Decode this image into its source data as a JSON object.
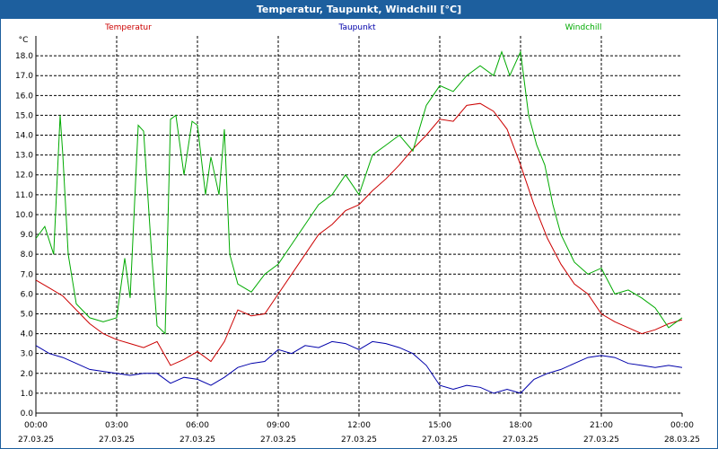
{
  "window": {
    "title": "Temperatur, Taupunkt, Windchill [°C]"
  },
  "colors": {
    "titlebar": "#1d5f9e",
    "grid": "#000000",
    "axis": "#000000"
  },
  "chart_data": {
    "type": "line",
    "title": "Temperatur, Taupunkt, Windchill [°C]",
    "ylabel": "°C",
    "xlabel": "",
    "ylim": [
      0.0,
      19.0
    ],
    "xlim": [
      0.0,
      24.0
    ],
    "grid": true,
    "legend_placement": "top",
    "y_ticks": [
      0.0,
      1.0,
      2.0,
      3.0,
      4.0,
      5.0,
      6.0,
      7.0,
      8.0,
      9.0,
      10.0,
      11.0,
      12.0,
      13.0,
      14.0,
      15.0,
      16.0,
      17.0,
      18.0
    ],
    "y_tick_labels": [
      "0.0",
      "1.0",
      "2.0",
      "3.0",
      "4.0",
      "5.0",
      "6.0",
      "7.0",
      "8.0",
      "9.0",
      "10.0",
      "11.0",
      "12.0",
      "13.0",
      "14.0",
      "15.0",
      "16.0",
      "17.0",
      "18.0"
    ],
    "x_ticks": [
      {
        "hour": 0,
        "time": "00:00",
        "date": "27.03.25"
      },
      {
        "hour": 3,
        "time": "03:00",
        "date": "27.03.25"
      },
      {
        "hour": 6,
        "time": "06:00",
        "date": "27.03.25"
      },
      {
        "hour": 9,
        "time": "09:00",
        "date": "27.03.25"
      },
      {
        "hour": 12,
        "time": "12:00",
        "date": "27.03.25"
      },
      {
        "hour": 15,
        "time": "15:00",
        "date": "27.03.25"
      },
      {
        "hour": 18,
        "time": "18:00",
        "date": "27.03.25"
      },
      {
        "hour": 21,
        "time": "21:00",
        "date": "27.03.25"
      },
      {
        "hour": 24,
        "time": "00:00",
        "date": "28.03.25"
      }
    ],
    "series": [
      {
        "name": "Temperatur",
        "color": "#cc0000",
        "x": [
          0,
          0.5,
          1,
          1.5,
          2,
          2.5,
          3,
          3.5,
          4,
          4.5,
          5,
          5.5,
          6,
          6.5,
          7,
          7.5,
          8,
          8.5,
          9,
          9.5,
          10,
          10.5,
          11,
          11.5,
          12,
          12.5,
          13,
          13.5,
          14,
          14.5,
          15,
          15.5,
          16,
          16.5,
          17,
          17.5,
          18,
          18.5,
          19,
          19.5,
          20,
          20.5,
          21,
          21.5,
          22,
          22.5,
          23,
          23.5,
          24
        ],
        "values": [
          6.7,
          6.3,
          5.9,
          5.2,
          4.5,
          4.0,
          3.7,
          3.5,
          3.3,
          3.6,
          2.4,
          2.7,
          3.1,
          2.6,
          3.6,
          5.2,
          4.9,
          5.0,
          6.0,
          7.0,
          8.0,
          9.0,
          9.5,
          10.2,
          10.5,
          11.2,
          11.8,
          12.5,
          13.3,
          14.0,
          14.8,
          14.7,
          15.5,
          15.6,
          15.2,
          14.3,
          12.5,
          10.5,
          8.8,
          7.5,
          6.5,
          6.0,
          5.0,
          4.6,
          4.3,
          4.0,
          4.2,
          4.5,
          4.7
        ]
      },
      {
        "name": "Taupunkt",
        "color": "#0000aa",
        "x": [
          0,
          0.5,
          1,
          1.5,
          2,
          2.5,
          3,
          3.5,
          4,
          4.5,
          5,
          5.5,
          6,
          6.5,
          7,
          7.5,
          8,
          8.5,
          9,
          9.5,
          10,
          10.5,
          11,
          11.5,
          12,
          12.5,
          13,
          13.5,
          14,
          14.5,
          15,
          15.5,
          16,
          16.5,
          17,
          17.5,
          18,
          18.5,
          19,
          19.5,
          20,
          20.5,
          21,
          21.5,
          22,
          22.5,
          23,
          23.5,
          24
        ],
        "values": [
          3.4,
          3.0,
          2.8,
          2.5,
          2.2,
          2.1,
          2.0,
          1.9,
          2.0,
          2.0,
          1.5,
          1.8,
          1.7,
          1.4,
          1.8,
          2.3,
          2.5,
          2.6,
          3.2,
          3.0,
          3.4,
          3.3,
          3.6,
          3.5,
          3.2,
          3.6,
          3.5,
          3.3,
          3.0,
          2.4,
          1.4,
          1.2,
          1.4,
          1.3,
          1.0,
          1.2,
          1.0,
          1.7,
          2.0,
          2.2,
          2.5,
          2.8,
          2.9,
          2.8,
          2.5,
          2.4,
          2.3,
          2.4,
          2.3
        ]
      },
      {
        "name": "Windchill",
        "color": "#00aa00",
        "x": [
          0,
          0.33,
          0.66,
          0.9,
          1,
          1.2,
          1.5,
          2,
          2.5,
          3,
          3.3,
          3.5,
          3.8,
          4,
          4.3,
          4.5,
          4.8,
          5,
          5.2,
          5.5,
          5.8,
          6,
          6.3,
          6.5,
          6.8,
          7,
          7.2,
          7.5,
          8,
          8.5,
          9,
          9.5,
          10,
          10.5,
          11,
          11.5,
          12,
          12.5,
          13,
          13.5,
          14,
          14.5,
          15,
          15.5,
          16,
          16.5,
          17,
          17.3,
          17.6,
          18,
          18.3,
          18.6,
          18.9,
          19.2,
          19.5,
          20,
          20.5,
          21,
          21.5,
          22,
          22.5,
          23,
          23.5,
          24
        ],
        "values": [
          8.8,
          9.4,
          8.0,
          15.0,
          13.0,
          8.0,
          5.5,
          4.8,
          4.6,
          4.8,
          7.8,
          5.8,
          14.5,
          14.2,
          8.0,
          4.4,
          4.0,
          14.8,
          15.0,
          12.0,
          14.7,
          14.5,
          11.0,
          12.9,
          11.0,
          14.3,
          8.0,
          6.5,
          6.1,
          7.0,
          7.5,
          8.5,
          9.5,
          10.5,
          11.0,
          12.0,
          11.0,
          13.0,
          13.5,
          14.0,
          13.2,
          15.5,
          16.5,
          16.2,
          17.0,
          17.5,
          17.0,
          18.2,
          17.0,
          18.2,
          15.0,
          13.5,
          12.5,
          10.5,
          9.0,
          7.6,
          7.0,
          7.3,
          6.0,
          6.2,
          5.8,
          5.3,
          4.3,
          4.8
        ]
      }
    ]
  }
}
